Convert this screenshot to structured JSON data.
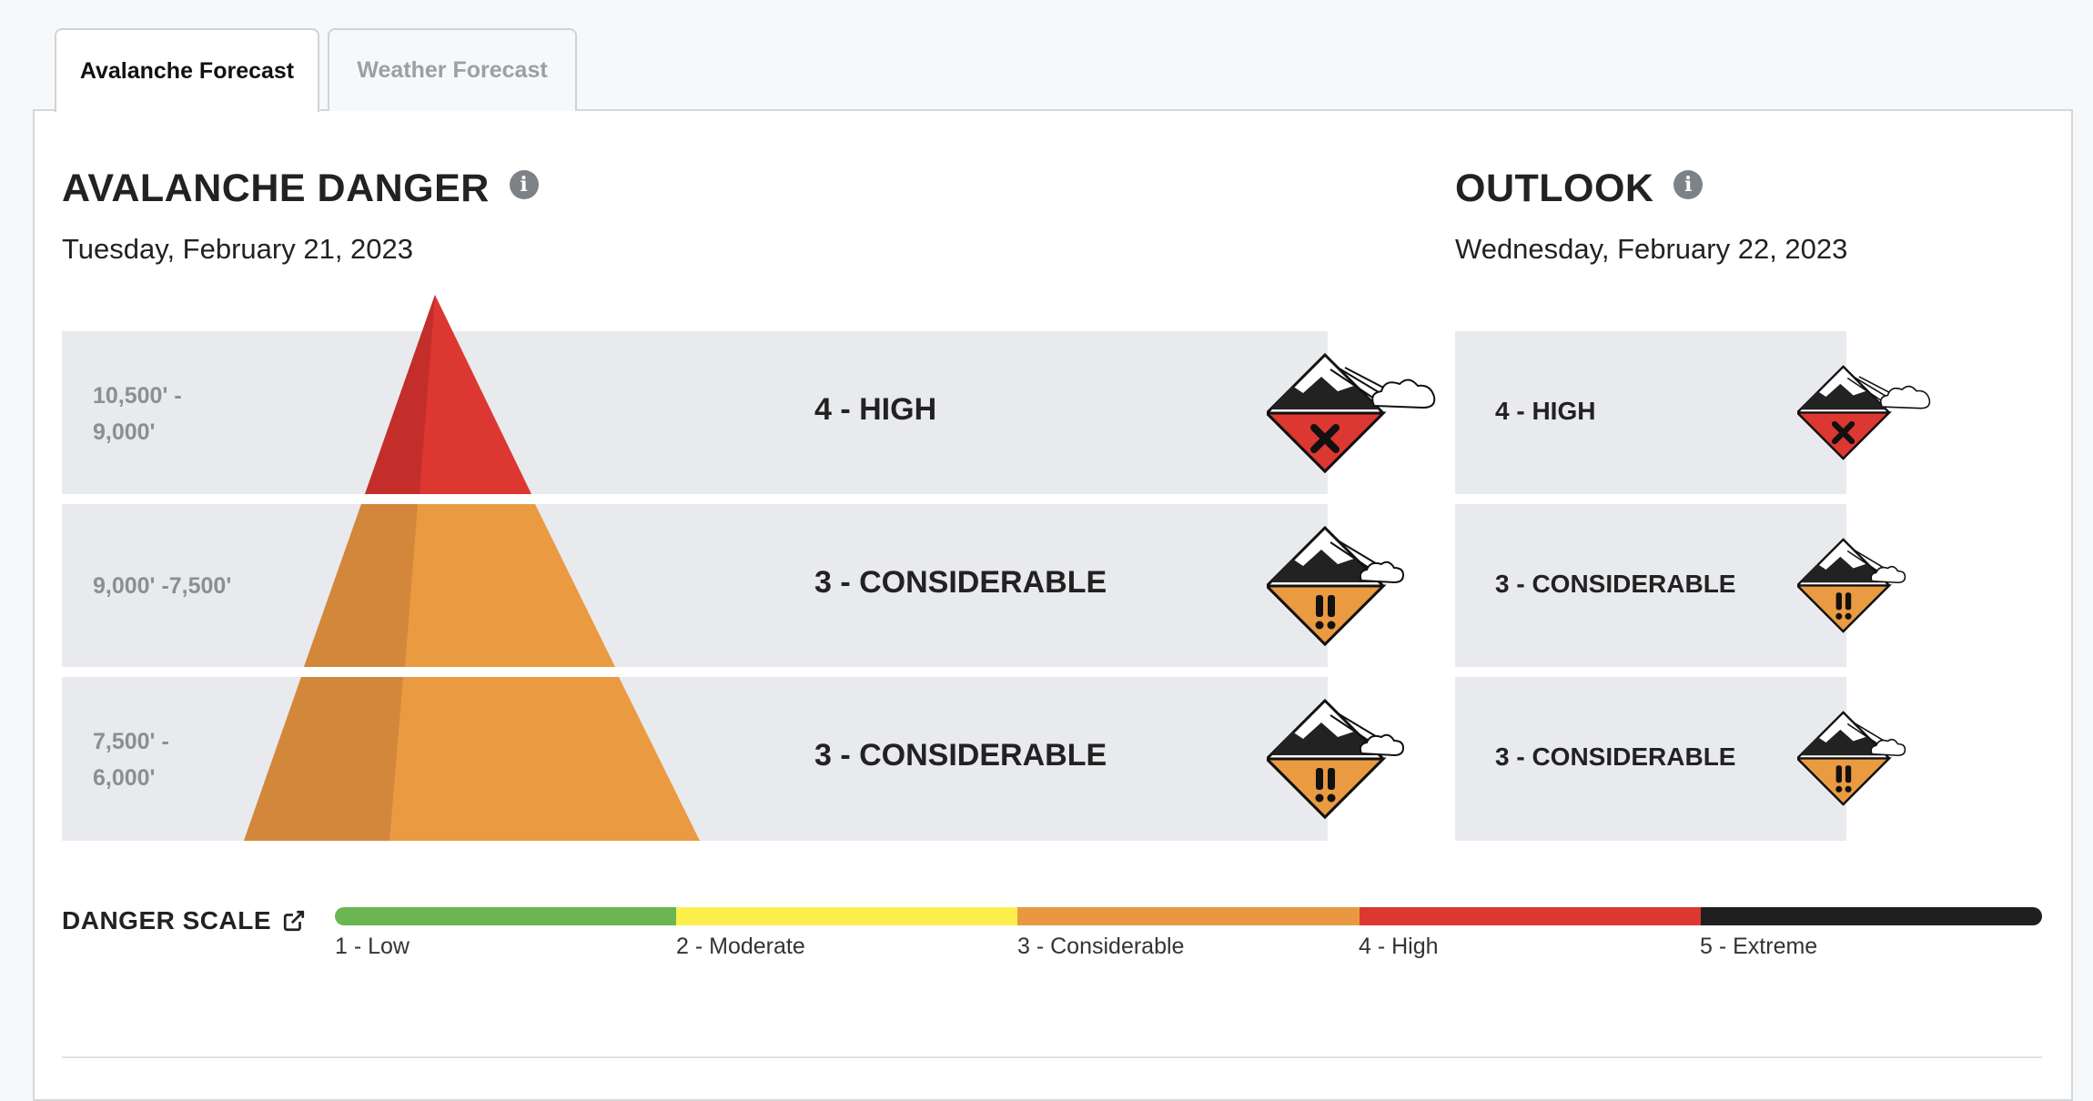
{
  "tabs": [
    {
      "label": "Avalanche Forecast",
      "active": true
    },
    {
      "label": "Weather Forecast",
      "active": false
    }
  ],
  "danger": {
    "title": "AVALANCHE DANGER",
    "date": "Tuesday, February 21, 2023",
    "rows": [
      {
        "elevation": "10,500' - 9,000'",
        "level": "4 - HIGH",
        "icon": "high-danger-icon"
      },
      {
        "elevation": "9,000' -7,500'",
        "level": "3 - CONSIDERABLE",
        "icon": "considerable-danger-icon"
      },
      {
        "elevation": "7,500' - 6,000'",
        "level": "3 - CONSIDERABLE",
        "icon": "considerable-danger-icon"
      }
    ]
  },
  "outlook": {
    "title": "OUTLOOK",
    "date": "Wednesday, February 22, 2023",
    "rows": [
      {
        "level": "4 - HIGH",
        "icon": "high-danger-icon"
      },
      {
        "level": "3 - CONSIDERABLE",
        "icon": "considerable-danger-icon"
      },
      {
        "level": "3 - CONSIDERABLE",
        "icon": "considerable-danger-icon"
      }
    ]
  },
  "danger_scale": {
    "title": "DANGER SCALE",
    "levels": [
      {
        "label": "1 - Low",
        "color": "#6ab651"
      },
      {
        "label": "2 - Moderate",
        "color": "#fcef4c"
      },
      {
        "label": "3 - Considerable",
        "color": "#e99841"
      },
      {
        "label": "4 - High",
        "color": "#dd3731"
      },
      {
        "label": "5 - Extreme",
        "color": "#1f1f1f"
      }
    ]
  },
  "colors": {
    "high": "#dd3731",
    "high_shade": "#c32e2a",
    "considerable": "#ea9a41",
    "considerable_shade": "#d3873a"
  }
}
